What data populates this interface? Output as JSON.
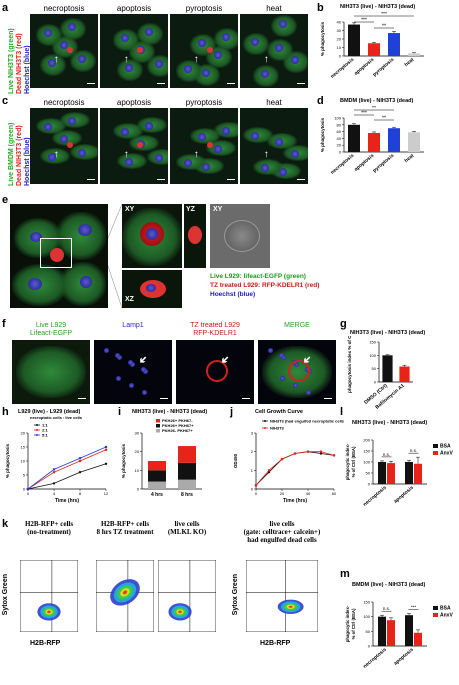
{
  "panels": {
    "a": {
      "letter": "a",
      "titles": [
        "necroptosis",
        "apoptosis",
        "pyroptosis",
        "heat"
      ],
      "side": [
        "Live NIH3T3 (green)",
        "Dead NIH3T3 (red)",
        "Hoechst (blue)"
      ]
    },
    "b": {
      "letter": "b",
      "title": "NIH3T3 (live) - NIH3T3 (dead)",
      "ylabel": "% phagocytosis",
      "stars": [
        "***",
        "***",
        "**"
      ]
    },
    "c": {
      "letter": "c",
      "titles": [
        "necroptosis",
        "apoptosis",
        "pyroptosis",
        "heat"
      ],
      "side": [
        "Live BMDM (green)",
        "Dead NIH3T3 (red)",
        "Hoechst (blue)"
      ]
    },
    "d": {
      "letter": "d",
      "title": "BMDM (live) - NIH3T3 (dead)",
      "ylabel": "% phagocytosis",
      "stars": [
        "**",
        "***",
        "**"
      ]
    },
    "e": {
      "letter": "e",
      "views": [
        "XY",
        "YZ",
        "XY",
        "XZ"
      ],
      "legend": [
        "Live L929: lifeact-EGFP (green)",
        "TZ treated L929: RFP-KDELR1 (red)",
        "Hoechst (blue)"
      ]
    },
    "f": {
      "letter": "f",
      "headers": [
        "Live L929\nLifeact-EGFP",
        "Lamp1",
        "TZ treated L929\nRFP-KDELR1",
        "MERGE"
      ]
    },
    "g": {
      "letter": "g",
      "title": "NIH3T3 (live) - NIH3T3 (dead)",
      "ylabel": "phagocytosis index\n% of Ctrl"
    },
    "h": {
      "letter": "h",
      "title": "L929 (live) - L929 (dead)",
      "subtitle": "necroptotic cells : live cells",
      "ylabel": "% phagocytosis",
      "xlabel": "Time (hrs)"
    },
    "i": {
      "letter": "i",
      "title": "NIH3T3 (live) - NIH3T3 (dead)",
      "ylabel": "% phagocytosis"
    },
    "j": {
      "letter": "j",
      "title": "Cell Growth Curve",
      "ylabel": "OD450",
      "xlabel": "Time (hrs)"
    },
    "k": {
      "letter": "k",
      "headers": [
        "H2B-RFP+ cells\n(no-treatment)",
        "H2B-RFP+ cells\n8 hrs TZ treatment",
        "live cells\n(MLKL KO)",
        "live cells\n(gate: celltrace+ calcein+)\nhad engulfed dead cells"
      ],
      "ylabel": "Sytox Green",
      "xlabel": "H2B-RFP"
    },
    "l": {
      "letter": "l",
      "title": "NIH3T3 (live) - NIH3T3 (dead)",
      "ylabel": "phagocytic index-\n% of Ctrl (BSA)",
      "ns": [
        "n.s.",
        "n.s."
      ]
    },
    "m": {
      "letter": "m",
      "title": "BMDM (live) - NIH3T3 (dead)",
      "ylabel": "phagocytic index-\n% of Ctrl (BSA)",
      "ns": [
        "n.s.",
        "***"
      ]
    }
  },
  "chart_data": [
    {
      "id": "b",
      "type": "bar",
      "categories": [
        "necroptosis",
        "apoptosis",
        "pyroptosis",
        "heat"
      ],
      "values": [
        37,
        15,
        27,
        3
      ],
      "errors": [
        2,
        1,
        2,
        1
      ],
      "colors": [
        "#111111",
        "#e8231a",
        "#2140d8",
        "#cccccc"
      ],
      "ylim": [
        0,
        40
      ],
      "yticks": [
        0,
        10,
        20,
        30,
        40
      ]
    },
    {
      "id": "d",
      "type": "bar",
      "categories": [
        "necroptosis",
        "apoptosis",
        "pyroptosis",
        "heat"
      ],
      "values": [
        80,
        56,
        70,
        58
      ],
      "errors": [
        3,
        3,
        3,
        3
      ],
      "colors": [
        "#111111",
        "#e8231a",
        "#2140d8",
        "#cccccc"
      ],
      "ylim": [
        0,
        100
      ],
      "yticks": [
        0,
        20,
        40,
        60,
        80,
        100
      ]
    },
    {
      "id": "g",
      "type": "bar",
      "categories": [
        "DMSO (Ctrl)",
        "Bafilomycin A1"
      ],
      "values": [
        100,
        58
      ],
      "errors": [
        2,
        5
      ],
      "colors": [
        "#111111",
        "#e8231a"
      ],
      "ylim": [
        0,
        150
      ],
      "yticks": [
        0,
        50,
        100,
        150
      ]
    },
    {
      "id": "h",
      "type": "line",
      "x": [
        0,
        4,
        8,
        12
      ],
      "xticks": [
        0,
        4,
        8,
        12
      ],
      "series": [
        {
          "name": "1:1",
          "values": [
            0,
            2,
            6,
            9
          ],
          "color": "#111111"
        },
        {
          "name": "2:1",
          "values": [
            0,
            6,
            10,
            14
          ],
          "color": "#e8231a"
        },
        {
          "name": "5:1",
          "values": [
            0,
            7,
            11,
            15
          ],
          "color": "#2140d8"
        }
      ],
      "ylim": [
        0,
        20
      ],
      "yticks": [
        0,
        5,
        10,
        15,
        20
      ]
    },
    {
      "id": "i",
      "type": "bar",
      "categories": [
        "4 hrs",
        "8 hrs"
      ],
      "series": [
        {
          "name": "PKH26+ PKH67-",
          "values": [
            5,
            9
          ],
          "color": "#e8231a"
        },
        {
          "name": "PKH26+ PKH67+",
          "values": [
            6,
            9
          ],
          "color": "#111111"
        },
        {
          "name": "PKH26- PKH67+",
          "values": [
            4,
            5
          ],
          "color": "#aaaaaa"
        }
      ],
      "ylim": [
        0,
        30
      ],
      "yticks": [
        0,
        10,
        20,
        30
      ]
    },
    {
      "id": "j",
      "type": "line",
      "x": [
        0,
        10,
        20,
        30,
        40,
        50,
        60
      ],
      "xticks": [
        0,
        20,
        40,
        60
      ],
      "series": [
        {
          "name": "NIH3T3 (had engulfed necroptotic cells)",
          "values": [
            0.2,
            0.9,
            1.6,
            1.9,
            2.0,
            1.9,
            1.8
          ],
          "color": "#111111"
        },
        {
          "name": "NIH3T3",
          "values": [
            0.2,
            1.0,
            1.6,
            1.9,
            2.0,
            2.0,
            1.8
          ],
          "color": "#e8231a"
        }
      ],
      "ylim": [
        0,
        3
      ],
      "yticks": [
        0,
        1,
        2,
        3
      ]
    },
    {
      "id": "l",
      "type": "bar",
      "categories": [
        "necroptosis",
        "apoptosis"
      ],
      "series": [
        {
          "name": "BSA",
          "values": [
            100,
            100
          ],
          "errors": [
            5,
            8
          ],
          "color": "#111111"
        },
        {
          "name": "AnxV",
          "values": [
            95,
            92
          ],
          "errors": [
            8,
            30
          ],
          "color": "#e8231a"
        }
      ],
      "ylim": [
        0,
        200
      ],
      "yticks": [
        0,
        50,
        100,
        150,
        200
      ]
    },
    {
      "id": "m",
      "type": "bar",
      "categories": [
        "necroptosis",
        "apoptosis"
      ],
      "series": [
        {
          "name": "BSA",
          "values": [
            100,
            105
          ],
          "errors": [
            5,
            6
          ],
          "color": "#111111"
        },
        {
          "name": "AnxV",
          "values": [
            88,
            45
          ],
          "errors": [
            8,
            10
          ],
          "color": "#e8231a"
        }
      ],
      "ylim": [
        0,
        150
      ],
      "yticks": [
        0,
        50,
        100,
        150
      ]
    }
  ]
}
